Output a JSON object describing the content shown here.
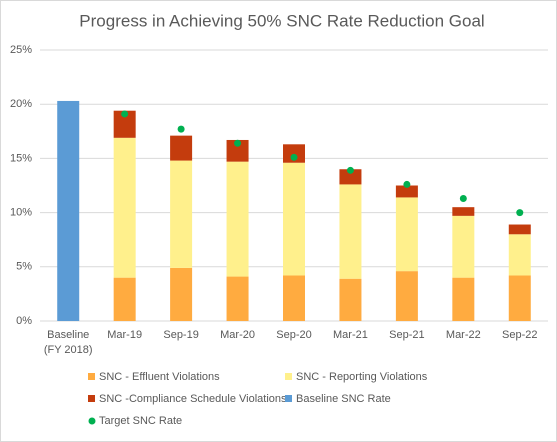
{
  "chart_data": {
    "type": "bar",
    "stacked": true,
    "title": "Progress in Achieving 50% SNC Rate Reduction Goal",
    "categories": [
      "Baseline (FY 2018)",
      "Mar-19",
      "Sep-19",
      "Mar-20",
      "Sep-20",
      "Mar-21",
      "Sep-21",
      "Mar-22",
      "Sep-22"
    ],
    "series": [
      {
        "name": "SNC - Effluent Violations",
        "color": "#ffab40",
        "values": [
          null,
          4.0,
          4.9,
          4.1,
          4.2,
          3.9,
          4.6,
          4.0,
          4.2
        ]
      },
      {
        "name": "SNC - Reporting Violations",
        "color": "#fff08c",
        "values": [
          null,
          12.9,
          9.9,
          10.6,
          10.4,
          8.7,
          6.8,
          5.7,
          3.8
        ]
      },
      {
        "name": "SNC -Compliance Schedule Violations",
        "color": "#c43c0d",
        "values": [
          null,
          2.5,
          2.3,
          2.0,
          1.7,
          1.4,
          1.1,
          0.8,
          0.9
        ]
      },
      {
        "name": "Baseline SNC Rate",
        "color": "#5b9bd5",
        "values": [
          20.3,
          null,
          null,
          null,
          null,
          null,
          null,
          null,
          null
        ]
      },
      {
        "name": "Target SNC Rate",
        "color": "#00b050",
        "type": "scatter",
        "values": [
          null,
          19.1,
          17.7,
          16.4,
          15.1,
          13.9,
          12.6,
          11.3,
          10.0
        ]
      }
    ],
    "ylim": [
      0,
      25
    ],
    "yticks": [
      {
        "value": 0,
        "label": "0%"
      },
      {
        "value": 5,
        "label": "5%"
      },
      {
        "value": 10,
        "label": "10%"
      },
      {
        "value": 15,
        "label": "15%"
      },
      {
        "value": 20,
        "label": "20%"
      },
      {
        "value": 25,
        "label": "25%"
      }
    ],
    "grid": true
  }
}
